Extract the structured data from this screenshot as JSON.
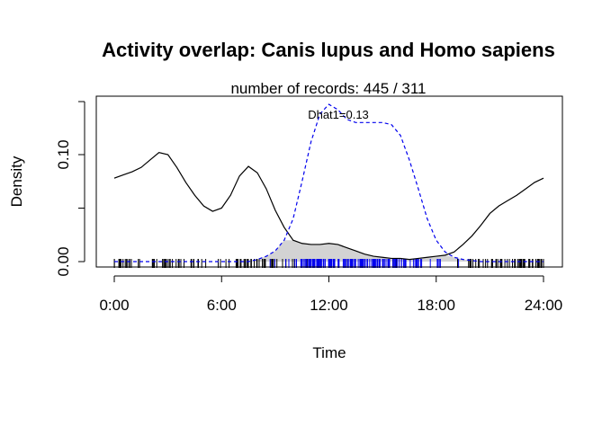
{
  "chart_data": {
    "type": "line",
    "title": "Activity overlap:  Canis lupus and Homo sapiens",
    "subtitle": "number of records: 445 / 311",
    "xlabel": "Time",
    "ylabel": "Density",
    "xlim": [
      0,
      24
    ],
    "ylim": [
      -0.005,
      0.15
    ],
    "x_ticks": [
      0,
      6,
      12,
      18,
      24
    ],
    "x_tick_labels": [
      "0:00",
      "6:00",
      "12:00",
      "18:00",
      "24:00"
    ],
    "y_ticks": [
      0.0,
      0.05,
      0.1
    ],
    "y_tick_labels": [
      "0.00",
      "",
      "0.10"
    ],
    "annotation": "Dhat1=0.13",
    "grid": false,
    "series": [
      {
        "style": "solid",
        "color": "#000000",
        "x": [
          0,
          0.5,
          1,
          1.5,
          2,
          2.5,
          3,
          3.5,
          4,
          4.5,
          5,
          5.5,
          6,
          6.5,
          7,
          7.5,
          8,
          8.5,
          9,
          9.5,
          10,
          10.5,
          11,
          11.5,
          12,
          12.5,
          13,
          13.5,
          14,
          14.5,
          15,
          15.5,
          16,
          16.5,
          17,
          17.5,
          18,
          18.5,
          19,
          19.5,
          20,
          20.5,
          21,
          21.5,
          22,
          22.5,
          23,
          23.5,
          24
        ],
        "y": [
          0.078,
          0.081,
          0.084,
          0.088,
          0.095,
          0.102,
          0.1,
          0.088,
          0.074,
          0.062,
          0.052,
          0.047,
          0.05,
          0.062,
          0.08,
          0.089,
          0.083,
          0.068,
          0.048,
          0.032,
          0.02,
          0.017,
          0.016,
          0.016,
          0.017,
          0.016,
          0.013,
          0.01,
          0.007,
          0.005,
          0.004,
          0.003,
          0.003,
          0.002,
          0.003,
          0.004,
          0.005,
          0.006,
          0.009,
          0.016,
          0.024,
          0.034,
          0.045,
          0.052,
          0.057,
          0.062,
          0.068,
          0.074,
          0.078
        ]
      },
      {
        "style": "dashed",
        "color": "#0000ee",
        "x": [
          0,
          0.5,
          1,
          1.5,
          2,
          2.5,
          3,
          3.5,
          4,
          4.5,
          5,
          5.5,
          6,
          6.5,
          7,
          7.5,
          8,
          8.5,
          9,
          9.5,
          10,
          10.5,
          11,
          11.5,
          12,
          12.5,
          13,
          13.5,
          14,
          14.5,
          15,
          15.5,
          16,
          16.5,
          17,
          17.5,
          18,
          18.5,
          19,
          19.5,
          20,
          20.5,
          21,
          21.5,
          22,
          22.5,
          23,
          23.5,
          24
        ],
        "y": [
          0.0,
          0.0,
          0.0,
          0.0,
          0.0,
          0.0,
          0.0,
          0.0,
          0.0,
          0.0,
          0.0,
          0.0,
          0.0,
          0.0,
          0.0,
          0.0,
          0.002,
          0.005,
          0.01,
          0.02,
          0.04,
          0.075,
          0.112,
          0.138,
          0.147,
          0.142,
          0.133,
          0.13,
          0.13,
          0.13,
          0.13,
          0.128,
          0.118,
          0.095,
          0.068,
          0.04,
          0.02,
          0.009,
          0.004,
          0.002,
          0.001,
          0.0,
          0.0,
          0.0,
          0.0,
          0.0,
          0.0,
          0.0,
          0.0
        ]
      }
    ],
    "overlap_shading": "#d3d3d3",
    "rug": [
      {
        "color": "#000000",
        "count": 445
      },
      {
        "color": "#0000ee",
        "count": 311
      }
    ]
  }
}
